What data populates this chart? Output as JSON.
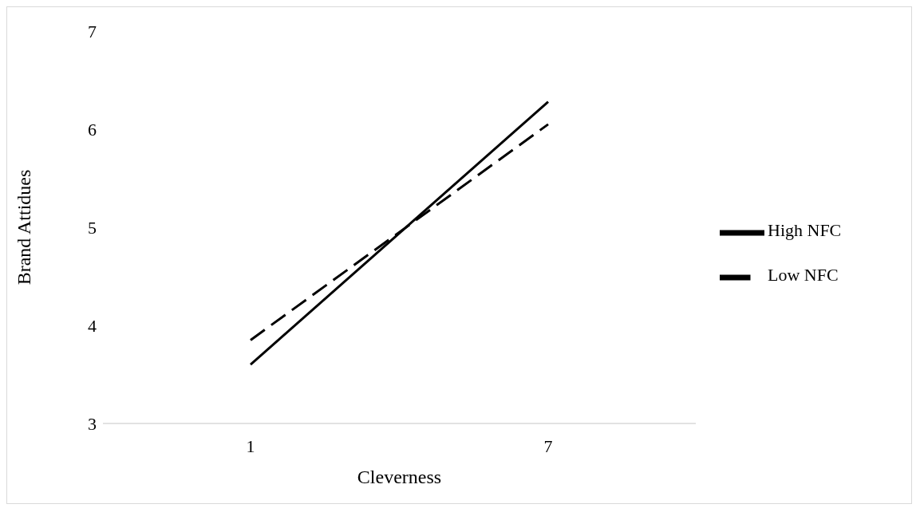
{
  "chart_data": {
    "type": "line",
    "xlabel": "Cleverness",
    "ylabel": "Brand Attidues",
    "categories": [
      "1",
      "7"
    ],
    "series": [
      {
        "name": "Low NFC",
        "color": "#000000",
        "values": [
          3.85,
          6.05
        ],
        "line_style": "dashed"
      },
      {
        "name": "High NFC",
        "color": "#000000",
        "values": [
          3.6,
          6.28
        ],
        "line_style": "solid"
      }
    ],
    "ylim": [
      3,
      7
    ],
    "yticks": [
      3,
      4,
      5,
      6,
      7
    ],
    "grid": false,
    "legend": "right",
    "marker": "none"
  }
}
